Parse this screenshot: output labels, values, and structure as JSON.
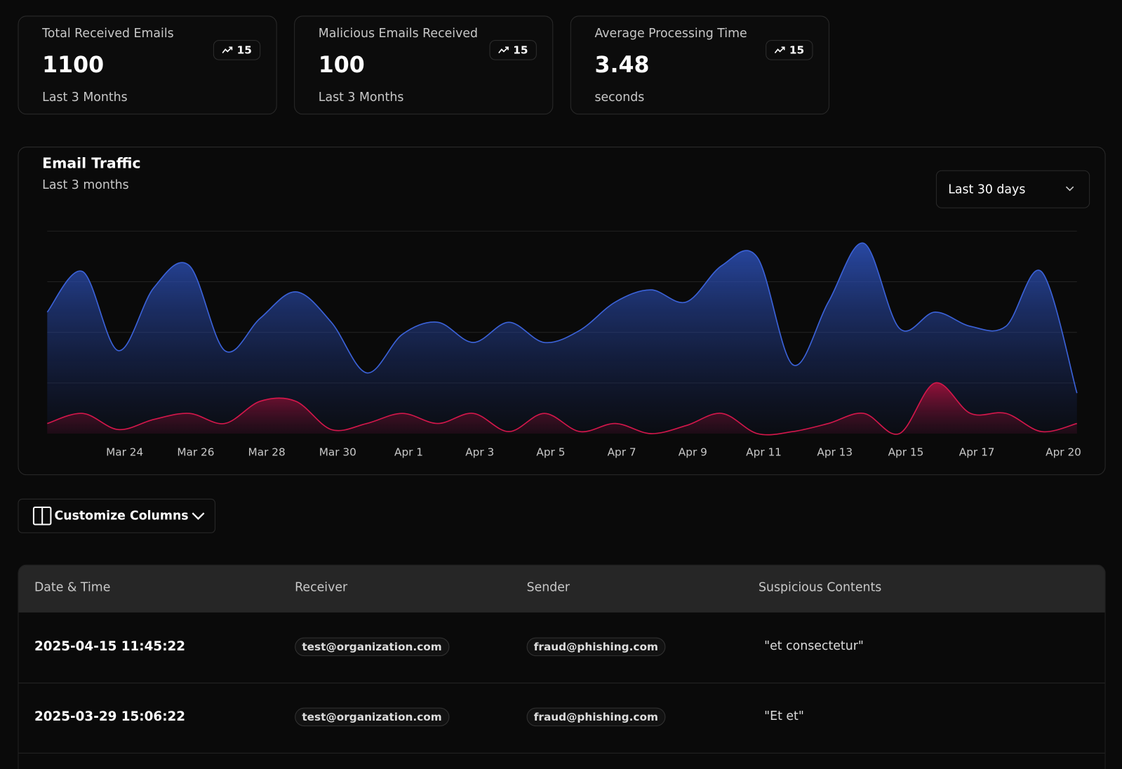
{
  "stats": [
    {
      "title": "Total Received Emails",
      "value": 1100,
      "note": "Last 3 Months",
      "change": 15
    },
    {
      "title": "Malicious Emails Received",
      "value": 100,
      "note": "Last 3 Months",
      "change": 15
    },
    {
      "title": "Average Processing Time",
      "value": 3.48,
      "note": "seconds",
      "change": 15
    }
  ],
  "chart_data": {
    "type": "area",
    "title": "Email Traffic",
    "subtitle": "Last 3 months",
    "categories": [
      null,
      null,
      "Mar 24",
      null,
      "Mar 26",
      null,
      "Mar 28",
      null,
      "Mar 30",
      null,
      "Apr 1",
      null,
      "Apr 3",
      null,
      "Apr 5",
      null,
      "Apr 7",
      null,
      "Apr 9",
      null,
      "Apr 11",
      null,
      "Apr 13",
      null,
      "Apr 15",
      null,
      "Apr 17",
      null,
      null,
      "Apr 20"
    ],
    "series": [
      {
        "color": "#3b62d8",
        "values": [
          60,
          80,
          41,
          72,
          83,
          41,
          57,
          70,
          55,
          30,
          49,
          55,
          45,
          55,
          45,
          51,
          65,
          71,
          65,
          83,
          87,
          34,
          65,
          94,
          52,
          60,
          53,
          53,
          80,
          20
        ]
      },
      {
        "color": "#d3174b",
        "values": [
          5,
          10,
          2,
          7,
          10,
          5,
          16,
          16,
          2,
          5,
          10,
          5,
          10,
          1,
          10,
          1,
          5,
          0,
          4,
          10,
          0,
          1,
          5,
          10,
          0,
          25,
          10,
          10,
          1,
          5
        ]
      }
    ],
    "ylim": [
      0,
      100
    ],
    "grid": true
  },
  "controls": {
    "range": "Last 30 days",
    "customize": "Customize Columns"
  },
  "table": {
    "headers": [
      "Date & Time",
      "Receiver",
      "Sender",
      "Suspicious Contents"
    ],
    "rows": [
      [
        "2025-04-15 11:45:22",
        "test@organization.com",
        "fraud@phishing.com",
        "\"et consectetur\""
      ],
      [
        "2025-03-29 15:06:22",
        "test@organization.com",
        "fraud@phishing.com",
        "\"Et et\""
      ]
    ]
  }
}
